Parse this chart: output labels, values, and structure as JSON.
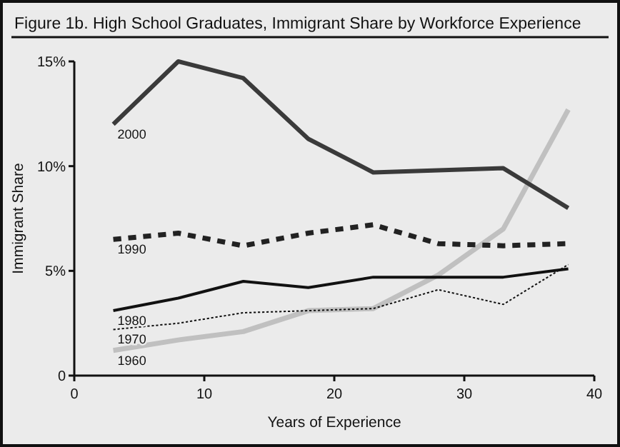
{
  "chart_data": {
    "type": "line",
    "title": "Figure 1b. High School Graduates, Immigrant Share by Workforce Experience",
    "xlabel": "Years of Experience",
    "ylabel": "Immigrant Share",
    "x": [
      3,
      8,
      13,
      18,
      23,
      28,
      33,
      38
    ],
    "series": [
      {
        "name": "2000",
        "color": "#3a3a3a",
        "line_style": "solid",
        "values": [
          12,
          15,
          14.2,
          11.3,
          9.7,
          9.8,
          9.9,
          8.0
        ]
      },
      {
        "name": "1990",
        "color": "#222222",
        "line_style": "dashed",
        "values": [
          6.5,
          6.8,
          6.2,
          6.8,
          7.2,
          6.3,
          6.2,
          6.3
        ]
      },
      {
        "name": "1980",
        "color": "#111111",
        "line_style": "solid",
        "values": [
          3.1,
          3.7,
          4.5,
          4.2,
          4.7,
          4.7,
          4.7,
          5.1
        ]
      },
      {
        "name": "1970",
        "color": "#111111",
        "line_style": "dashed",
        "values": [
          2.2,
          2.5,
          3.0,
          3.1,
          3.2,
          4.1,
          3.4,
          5.3
        ]
      },
      {
        "name": "1960",
        "color": "#c0c0c0",
        "line_style": "solid",
        "values": [
          1.2,
          1.7,
          2.1,
          3.1,
          3.2,
          4.8,
          7.0,
          12.7
        ]
      }
    ],
    "xlim": [
      0,
      40
    ],
    "xticks": [
      0,
      10,
      20,
      30,
      40
    ],
    "ylim": [
      0,
      15
    ],
    "yticks": [
      {
        "value": 0,
        "label": "0"
      },
      {
        "value": 5,
        "label": "5%"
      },
      {
        "value": 10,
        "label": "10%"
      },
      {
        "value": 15,
        "label": "15%"
      }
    ],
    "grid": false,
    "marker": "none"
  }
}
